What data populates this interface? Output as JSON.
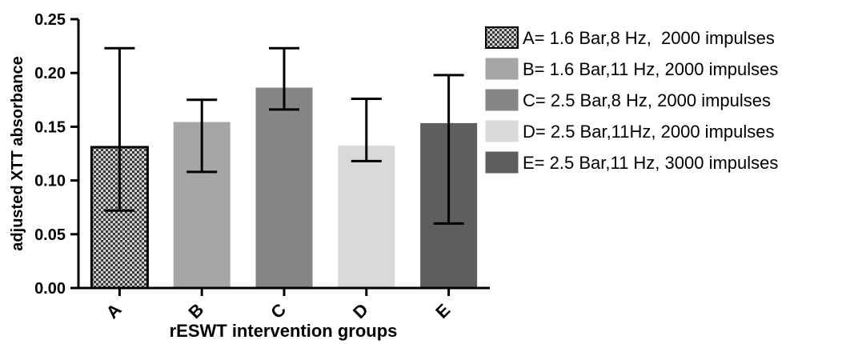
{
  "chart_data": {
    "type": "bar",
    "title": "",
    "xlabel": "rESWT intervention groups",
    "ylabel": "adjusted XTT absorbance",
    "ylim": [
      0,
      0.25
    ],
    "yticks": [
      "0.00",
      "0.05",
      "0.10",
      "0.15",
      "0.20",
      "0.25"
    ],
    "categories": [
      "A",
      "B",
      "C",
      "D",
      "E"
    ],
    "values": [
      0.131,
      0.154,
      0.186,
      0.132,
      0.153
    ],
    "error_upper": [
      0.223,
      0.175,
      0.223,
      0.176,
      0.198
    ],
    "error_lower": [
      0.072,
      0.108,
      0.166,
      0.118,
      0.06
    ],
    "legend_placement": "right",
    "grid": false,
    "legend": [
      {
        "label": "A= 1.6 Bar,8 Hz,  2000 impulses",
        "color": "#7a7a7a",
        "pattern": "checker"
      },
      {
        "label": "B= 1.6 Bar,11 Hz, 2000 impulses",
        "color": "#a6a6a6"
      },
      {
        "label": "C= 2.5 Bar,8 Hz, 2000 impulses",
        "color": "#858585"
      },
      {
        "label": "D= 2.5 Bar,11Hz, 2000 impulses",
        "color": "#d9d9d9"
      },
      {
        "label": "E= 2.5 Bar,11 Hz, 3000 impulses",
        "color": "#5e5e5e"
      }
    ]
  }
}
